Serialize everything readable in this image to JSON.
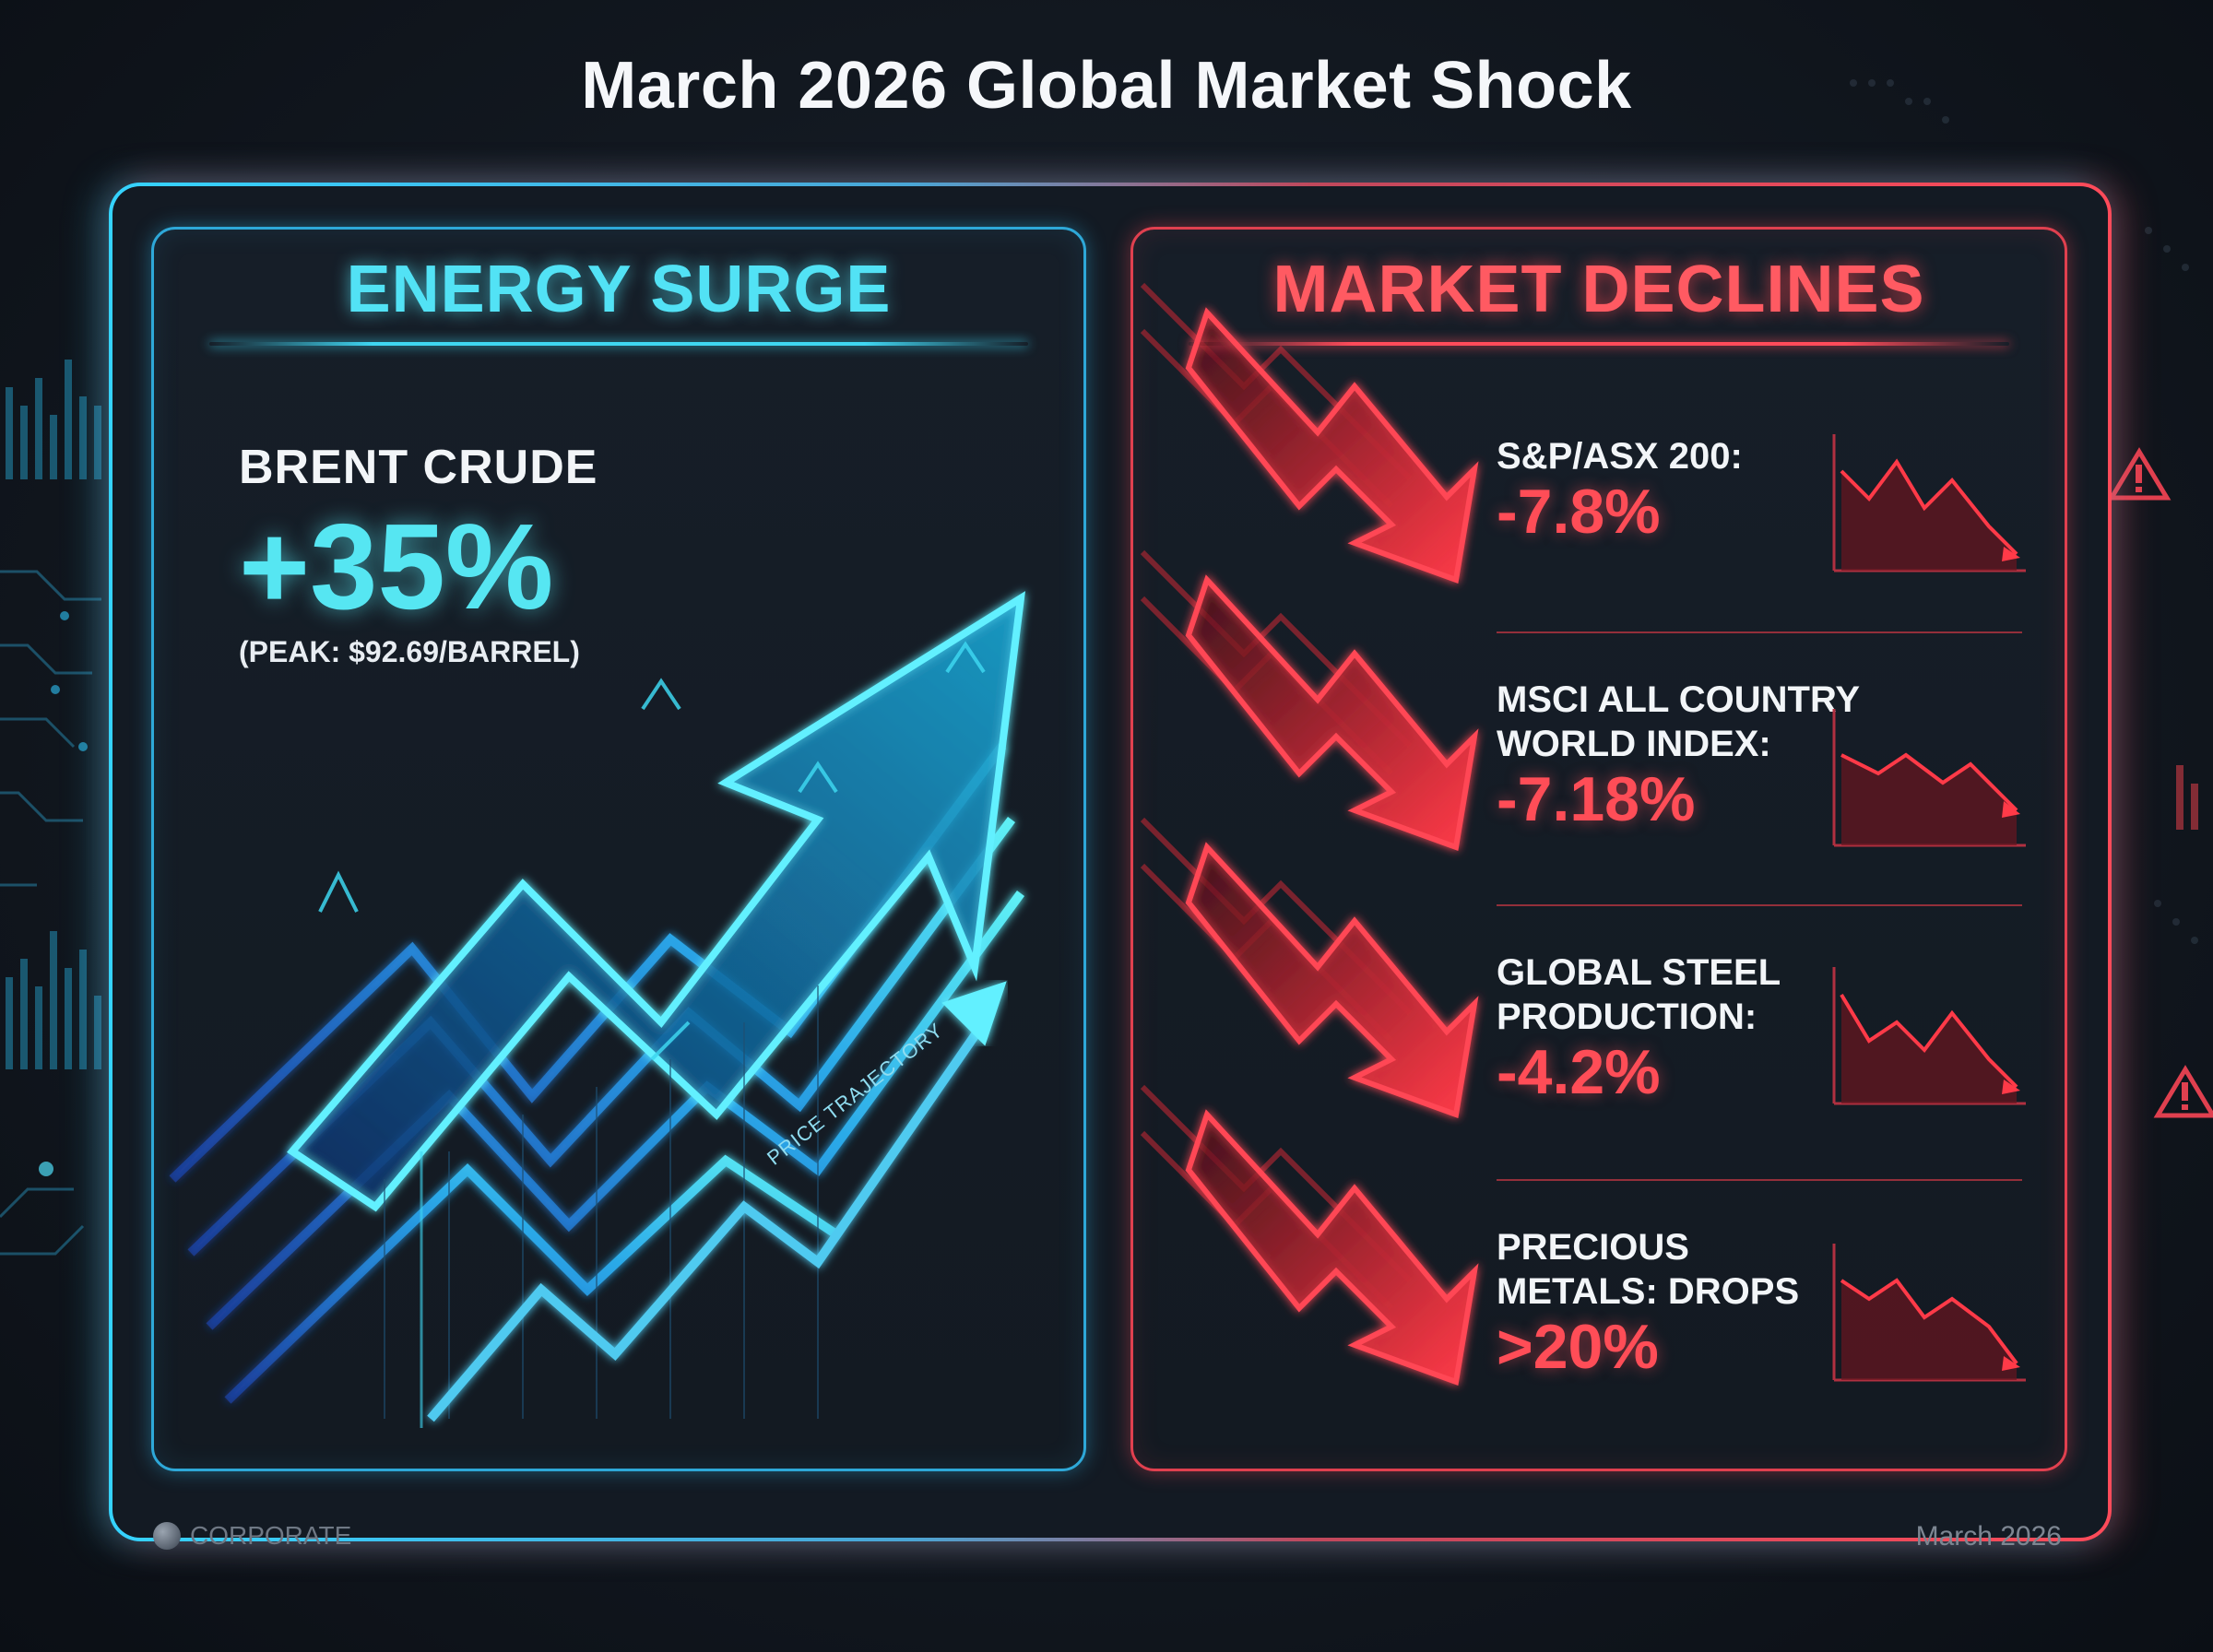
{
  "title": "March 2026 Global Market Shock",
  "left_panel": {
    "heading": "ENERGY SURGE",
    "metric_label": "BRENT CRUDE",
    "metric_value": "+35%",
    "metric_note": "(PEAK: $92.69/BARREL)",
    "chart_label": "PRICE TRAJECTORY",
    "accent_color": "#52e2f5"
  },
  "right_panel": {
    "heading": "MARKET DECLINES",
    "accent_color": "#ff4d57",
    "metrics": [
      {
        "label_lines": [
          "S&P/ASX 200:"
        ],
        "value": "-7.8%"
      },
      {
        "label_lines": [
          "MSCI ALL COUNTRY",
          "WORLD INDEX:"
        ],
        "value": "-7.18%"
      },
      {
        "label_lines": [
          "GLOBAL STEEL",
          "PRODUCTION:"
        ],
        "value": "-4.2%"
      },
      {
        "label_lines": [
          "PRECIOUS",
          "METALS: DROPS"
        ],
        "value": ">20%"
      }
    ]
  },
  "footer": {
    "brand": "CORPORATE",
    "date": "March 2026"
  },
  "icons": [
    "warning-icon",
    "trend-up-arrow-icon",
    "trend-down-arrow-icon",
    "corporate-logo-icon"
  ]
}
